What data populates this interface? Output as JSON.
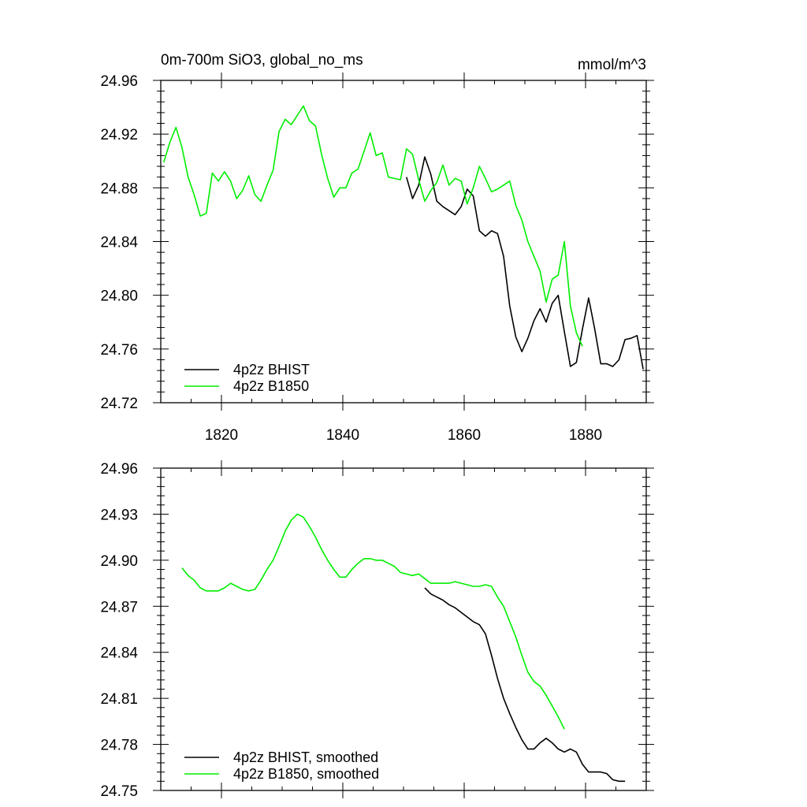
{
  "chart_data": [
    {
      "type": "line",
      "title": "0m-700m SiO3, global_no_ms",
      "units": "mmol/m^3",
      "xlim": [
        1810,
        1890
      ],
      "ylim": [
        24.72,
        24.96
      ],
      "yticks": [
        "24.72",
        "24.76",
        "24.80",
        "24.84",
        "24.88",
        "24.92",
        "24.96"
      ],
      "xticks": [
        "1820",
        "1840",
        "1860",
        "1880"
      ],
      "legend_position": "bottom-left",
      "series": [
        {
          "name": "4p2z BHIST",
          "color": "#000000",
          "x": [
            1850.5,
            1851.5,
            1852.5,
            1853.5,
            1854.5,
            1855.5,
            1856.5,
            1857.5,
            1858.5,
            1859.5,
            1860.5,
            1861.5,
            1862.5,
            1863.5,
            1864.5,
            1865.5,
            1866.5,
            1867.5,
            1868.5,
            1869.5,
            1870.5,
            1871.5,
            1872.5,
            1873.5,
            1874.5,
            1875.5,
            1876.5,
            1877.5,
            1878.5,
            1879.5,
            1880.5,
            1881.5,
            1882.5,
            1883.5,
            1884.5,
            1885.5,
            1886.5,
            1887.5,
            1888.5,
            1889.5
          ],
          "y": [
            24.888,
            24.872,
            24.882,
            24.903,
            24.89,
            24.87,
            24.866,
            24.863,
            24.86,
            24.866,
            24.879,
            24.874,
            24.848,
            24.844,
            24.848,
            24.846,
            24.829,
            24.792,
            24.769,
            24.758,
            24.768,
            24.781,
            24.79,
            24.78,
            24.794,
            24.8,
            24.773,
            24.747,
            24.75,
            24.775,
            24.798,
            24.775,
            24.749,
            24.749,
            24.747,
            24.752,
            24.767,
            24.768,
            24.77,
            24.745
          ]
        },
        {
          "name": "4p2z B1850",
          "color": "#00ee00",
          "x": [
            1810.5,
            1811.5,
            1812.5,
            1813.5,
            1814.5,
            1815.5,
            1816.5,
            1817.5,
            1818.5,
            1819.5,
            1820.5,
            1821.5,
            1822.5,
            1823.5,
            1824.5,
            1825.5,
            1826.5,
            1827.5,
            1828.5,
            1829.5,
            1830.5,
            1831.5,
            1832.5,
            1833.5,
            1834.5,
            1835.5,
            1836.5,
            1837.5,
            1838.5,
            1839.5,
            1840.5,
            1841.5,
            1842.5,
            1843.5,
            1844.5,
            1845.5,
            1846.5,
            1847.5,
            1848.5,
            1849.5,
            1850.5,
            1851.5,
            1852.5,
            1853.5,
            1854.5,
            1855.5,
            1856.5,
            1857.5,
            1858.5,
            1859.5,
            1860.5,
            1861.5,
            1862.5,
            1863.5,
            1864.5,
            1865.5,
            1866.5,
            1867.5,
            1868.5,
            1869.5,
            1870.5,
            1871.5,
            1872.5,
            1873.5,
            1874.5,
            1875.5,
            1876.5,
            1877.5,
            1878.5,
            1879.5
          ],
          "y": [
            24.899,
            24.914,
            24.925,
            24.91,
            24.888,
            24.875,
            24.859,
            24.861,
            24.891,
            24.885,
            24.892,
            24.885,
            24.872,
            24.878,
            24.889,
            24.875,
            24.87,
            24.882,
            24.893,
            24.922,
            24.931,
            24.927,
            24.934,
            24.941,
            24.93,
            24.926,
            24.905,
            24.887,
            24.873,
            24.88,
            24.88,
            24.891,
            24.894,
            24.907,
            24.921,
            24.904,
            24.906,
            24.888,
            24.887,
            24.886,
            24.909,
            24.905,
            24.886,
            24.87,
            24.878,
            24.884,
            24.897,
            24.882,
            24.887,
            24.885,
            24.868,
            24.88,
            24.896,
            24.887,
            24.877,
            24.879,
            24.882,
            24.885,
            24.867,
            24.856,
            24.84,
            24.829,
            24.818,
            24.795,
            24.812,
            24.815,
            24.84,
            24.792,
            24.772,
            24.762
          ]
        }
      ]
    },
    {
      "type": "line",
      "xlim": [
        1810,
        1890
      ],
      "ylim": [
        24.75,
        24.96
      ],
      "yticks": [
        "24.75",
        "24.78",
        "24.81",
        "24.84",
        "24.87",
        "24.90",
        "24.93",
        "24.96"
      ],
      "legend_position": "bottom-left",
      "series": [
        {
          "name": "4p2z BHIST, smoothed",
          "color": "#000000",
          "x": [
            1853.5,
            1854.5,
            1855.5,
            1856.5,
            1857.5,
            1858.5,
            1859.5,
            1860.5,
            1861.5,
            1862.5,
            1863.5,
            1864.5,
            1865.5,
            1866.5,
            1867.5,
            1868.5,
            1869.5,
            1870.5,
            1871.5,
            1872.5,
            1873.5,
            1874.5,
            1875.5,
            1876.5,
            1877.5,
            1878.5,
            1879.5,
            1880.5,
            1881.5,
            1882.5,
            1883.5,
            1884.5,
            1885.5,
            1886.5
          ],
          "y": [
            24.882,
            24.878,
            24.876,
            24.874,
            24.871,
            24.869,
            24.866,
            24.863,
            24.86,
            24.858,
            24.852,
            24.838,
            24.823,
            24.81,
            24.8,
            24.791,
            24.783,
            24.777,
            24.777,
            24.781,
            24.784,
            24.781,
            24.777,
            24.775,
            24.777,
            24.775,
            24.767,
            24.762,
            24.762,
            24.762,
            24.761,
            24.757,
            24.756,
            24.756
          ]
        },
        {
          "name": "4p2z B1850, smoothed",
          "color": "#00ee00",
          "x": [
            1813.5,
            1814.5,
            1815.5,
            1816.5,
            1817.5,
            1818.5,
            1819.5,
            1820.5,
            1821.5,
            1822.5,
            1823.5,
            1824.5,
            1825.5,
            1826.5,
            1827.5,
            1828.5,
            1829.5,
            1830.5,
            1831.5,
            1832.5,
            1833.5,
            1834.5,
            1835.5,
            1836.5,
            1837.5,
            1838.5,
            1839.5,
            1840.5,
            1841.5,
            1842.5,
            1843.5,
            1844.5,
            1845.5,
            1846.5,
            1847.5,
            1848.5,
            1849.5,
            1850.5,
            1851.5,
            1852.5,
            1853.5,
            1854.5,
            1855.5,
            1856.5,
            1857.5,
            1858.5,
            1859.5,
            1860.5,
            1861.5,
            1862.5,
            1863.5,
            1864.5,
            1865.5,
            1866.5,
            1867.5,
            1868.5,
            1869.5,
            1870.5,
            1871.5,
            1872.5,
            1873.5,
            1874.5,
            1875.5,
            1876.5
          ],
          "y": [
            24.895,
            24.89,
            24.887,
            24.882,
            24.88,
            24.88,
            24.88,
            24.882,
            24.885,
            24.883,
            24.881,
            24.88,
            24.881,
            24.887,
            24.894,
            24.9,
            24.909,
            24.919,
            24.926,
            24.93,
            24.928,
            24.922,
            24.915,
            24.907,
            24.9,
            24.894,
            24.889,
            24.889,
            24.894,
            24.898,
            24.901,
            24.901,
            24.9,
            24.9,
            24.898,
            24.896,
            24.892,
            24.891,
            24.89,
            24.891,
            24.888,
            24.885,
            24.885,
            24.885,
            24.885,
            24.886,
            24.885,
            24.884,
            24.883,
            24.883,
            24.884,
            24.883,
            24.876,
            24.87,
            24.86,
            24.85,
            24.838,
            24.827,
            24.821,
            24.818,
            24.812,
            24.805,
            24.798,
            24.79
          ]
        }
      ]
    }
  ]
}
